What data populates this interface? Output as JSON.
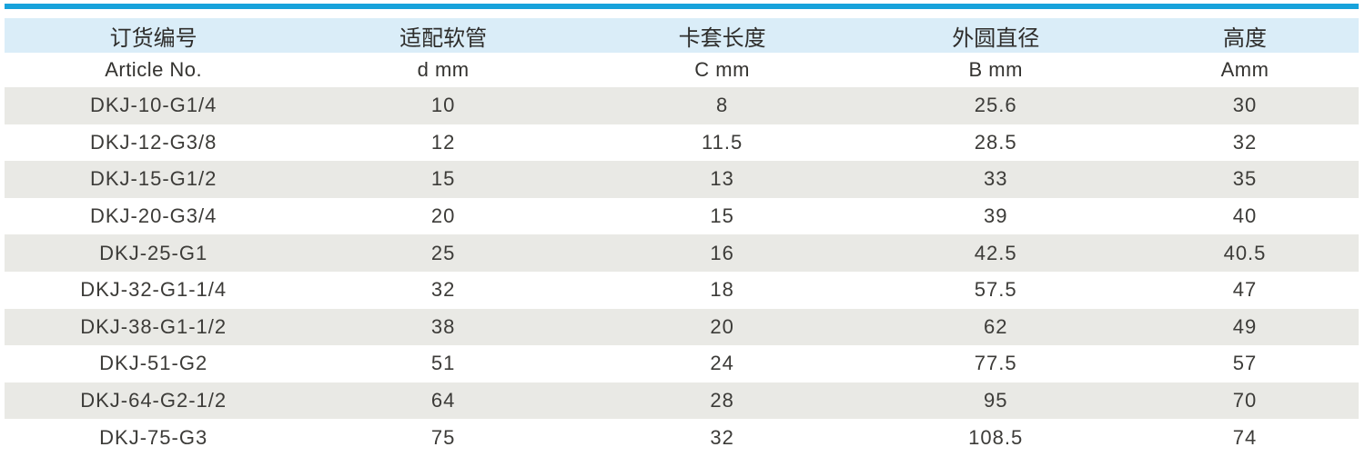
{
  "table": {
    "colors": {
      "accent": "#17a2db",
      "header_bg": "#daedf8",
      "stripe_bg": "#e9e9e5"
    },
    "columns": [
      {
        "cn": "订货编号",
        "en": "Article No."
      },
      {
        "cn": "适配软管",
        "en": "d mm"
      },
      {
        "cn": "卡套长度",
        "en": "C mm"
      },
      {
        "cn": "外圆直径",
        "en": "B mm"
      },
      {
        "cn": "高度",
        "en": "Amm"
      }
    ],
    "rows": [
      [
        "DKJ-10-G1/4",
        "10",
        "8",
        "25.6",
        "30"
      ],
      [
        "DKJ-12-G3/8",
        "12",
        "11.5",
        "28.5",
        "32"
      ],
      [
        "DKJ-15-G1/2",
        "15",
        "13",
        "33",
        "35"
      ],
      [
        "DKJ-20-G3/4",
        "20",
        "15",
        "39",
        "40"
      ],
      [
        "DKJ-25-G1",
        "25",
        "16",
        "42.5",
        "40.5"
      ],
      [
        "DKJ-32-G1-1/4",
        "32",
        "18",
        "57.5",
        "47"
      ],
      [
        "DKJ-38-G1-1/2",
        "38",
        "20",
        "62",
        "49"
      ],
      [
        "DKJ-51-G2",
        "51",
        "24",
        "77.5",
        "57"
      ],
      [
        "DKJ-64-G2-1/2",
        "64",
        "28",
        "95",
        "70"
      ],
      [
        "DKJ-75-G3",
        "75",
        "32",
        "108.5",
        "74"
      ]
    ]
  }
}
